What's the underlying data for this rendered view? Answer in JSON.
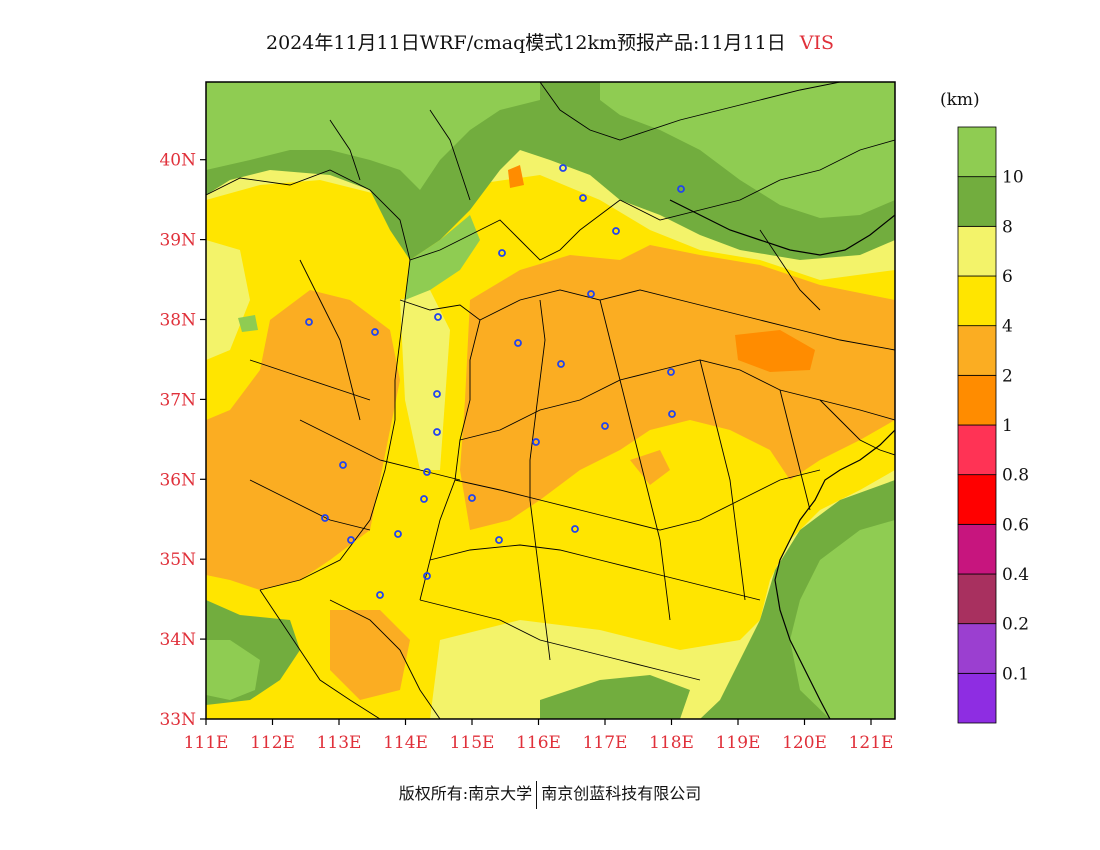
{
  "title": {
    "main": "2024年11月11日WRF/cmaq模式12km预报产品:11月11日",
    "variable": "VIS"
  },
  "colorbar": {
    "units": "(km)",
    "levels": [
      {
        "color": "#8e2de2",
        "label": "0.1"
      },
      {
        "color": "#9b3fd0",
        "label": "0.2"
      },
      {
        "color": "#a8305f",
        "label": "0.4"
      },
      {
        "color": "#c7157e",
        "label": "0.6"
      },
      {
        "color": "#ff0000",
        "label": "0.8"
      },
      {
        "color": "#ff3355",
        "label": "1"
      },
      {
        "color": "#ff8c00",
        "label": "2"
      },
      {
        "color": "#fbad22",
        "label": "4"
      },
      {
        "color": "#ffe500",
        "label": "6"
      },
      {
        "color": "#f3f36a",
        "label": "8"
      },
      {
        "color": "#72ad3e",
        "label": "10"
      },
      {
        "color": "#8fcc52",
        "label": ""
      }
    ]
  },
  "axes": {
    "lat_labels": [
      "33N",
      "34N",
      "35N",
      "36N",
      "37N",
      "38N",
      "39N",
      "40N"
    ],
    "lon_labels": [
      "111E",
      "112E",
      "113E",
      "114E",
      "115E",
      "116E",
      "117E",
      "118E",
      "119E",
      "120E",
      "121E"
    ]
  },
  "footer": {
    "left": "版权所有:南京大学",
    "right": "南京创蓝科技有限公司"
  }
}
